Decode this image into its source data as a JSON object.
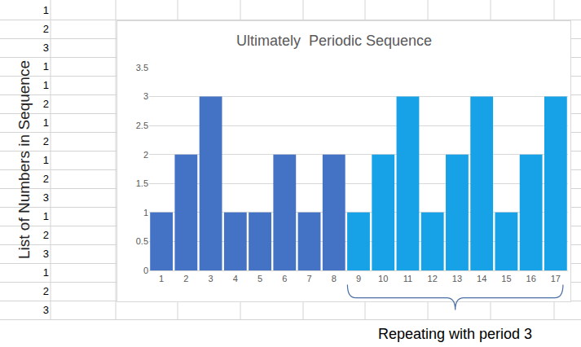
{
  "chart_data": {
    "type": "bar",
    "title": "Ultimately  Periodic Sequence",
    "categories": [
      "1",
      "2",
      "3",
      "4",
      "5",
      "6",
      "7",
      "8",
      "9",
      "10",
      "11",
      "12",
      "13",
      "14",
      "15",
      "16",
      "17"
    ],
    "values": [
      1,
      2,
      3,
      1,
      1,
      2,
      1,
      2,
      1,
      2,
      3,
      1,
      2,
      3,
      1,
      2,
      3
    ],
    "colors": [
      "#4472c4",
      "#4472c4",
      "#4472c4",
      "#4472c4",
      "#4472c4",
      "#4472c4",
      "#4472c4",
      "#4472c4",
      "#17a2e8",
      "#17a2e8",
      "#17a2e8",
      "#17a2e8",
      "#17a2e8",
      "#17a2e8",
      "#17a2e8",
      "#17a2e8",
      "#17a2e8"
    ],
    "ylim": [
      0,
      3.5
    ],
    "yticks": [
      0,
      0.5,
      1,
      1.5,
      2,
      2.5,
      3,
      3.5
    ],
    "grid": true,
    "annotations": [
      {
        "text": "Repeating with period 3",
        "from": "9",
        "to": "17"
      }
    ]
  },
  "sheet": {
    "label": "List of Numbers in Sequence",
    "cells": [
      1,
      2,
      3,
      1,
      1,
      2,
      1,
      2,
      1,
      2,
      3,
      1,
      2,
      3,
      1,
      2,
      3
    ]
  }
}
